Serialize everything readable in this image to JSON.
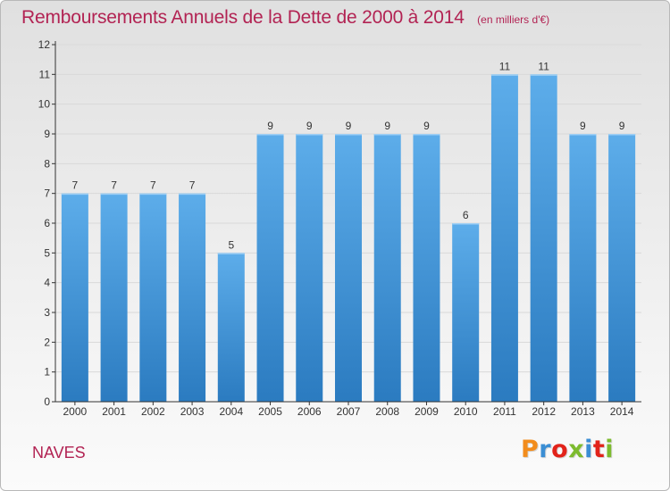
{
  "header": {
    "title": "Remboursements Annuels de la Dette de 2000 à 2014",
    "subtitle": "(en milliers d'€)"
  },
  "footer": {
    "commune": "NAVES",
    "logo_text": "Proxiti",
    "logo_colors": [
      "#f28c1c",
      "#3b8ed4",
      "#e2231a",
      "#7dbb2e",
      "#3b8ed4",
      "#e2231a",
      "#7dbb2e"
    ]
  },
  "colors": {
    "bar_light": "#5dadea",
    "bar_dark": "#2b7bc0",
    "title": "#b22353",
    "axis": "#333333",
    "grid": "#d9d9d9"
  },
  "chart_data": {
    "type": "bar",
    "categories": [
      "2000",
      "2001",
      "2002",
      "2003",
      "2004",
      "2005",
      "2006",
      "2007",
      "2008",
      "2009",
      "2010",
      "2011",
      "2012",
      "2013",
      "2014"
    ],
    "values": [
      7,
      7,
      7,
      7,
      5,
      9,
      9,
      9,
      9,
      9,
      6,
      11,
      11,
      9,
      9
    ],
    "data_labels": [
      "7",
      "7",
      "7",
      "7",
      "5",
      "9",
      "9",
      "9",
      "9",
      "9",
      "6",
      "11",
      "11",
      "9",
      "9"
    ],
    "yticks": [
      "0",
      "1",
      "2",
      "3",
      "4",
      "5",
      "6",
      "7",
      "8",
      "9",
      "10",
      "11",
      "12"
    ],
    "ylim": [
      0,
      12
    ],
    "grid": true
  }
}
